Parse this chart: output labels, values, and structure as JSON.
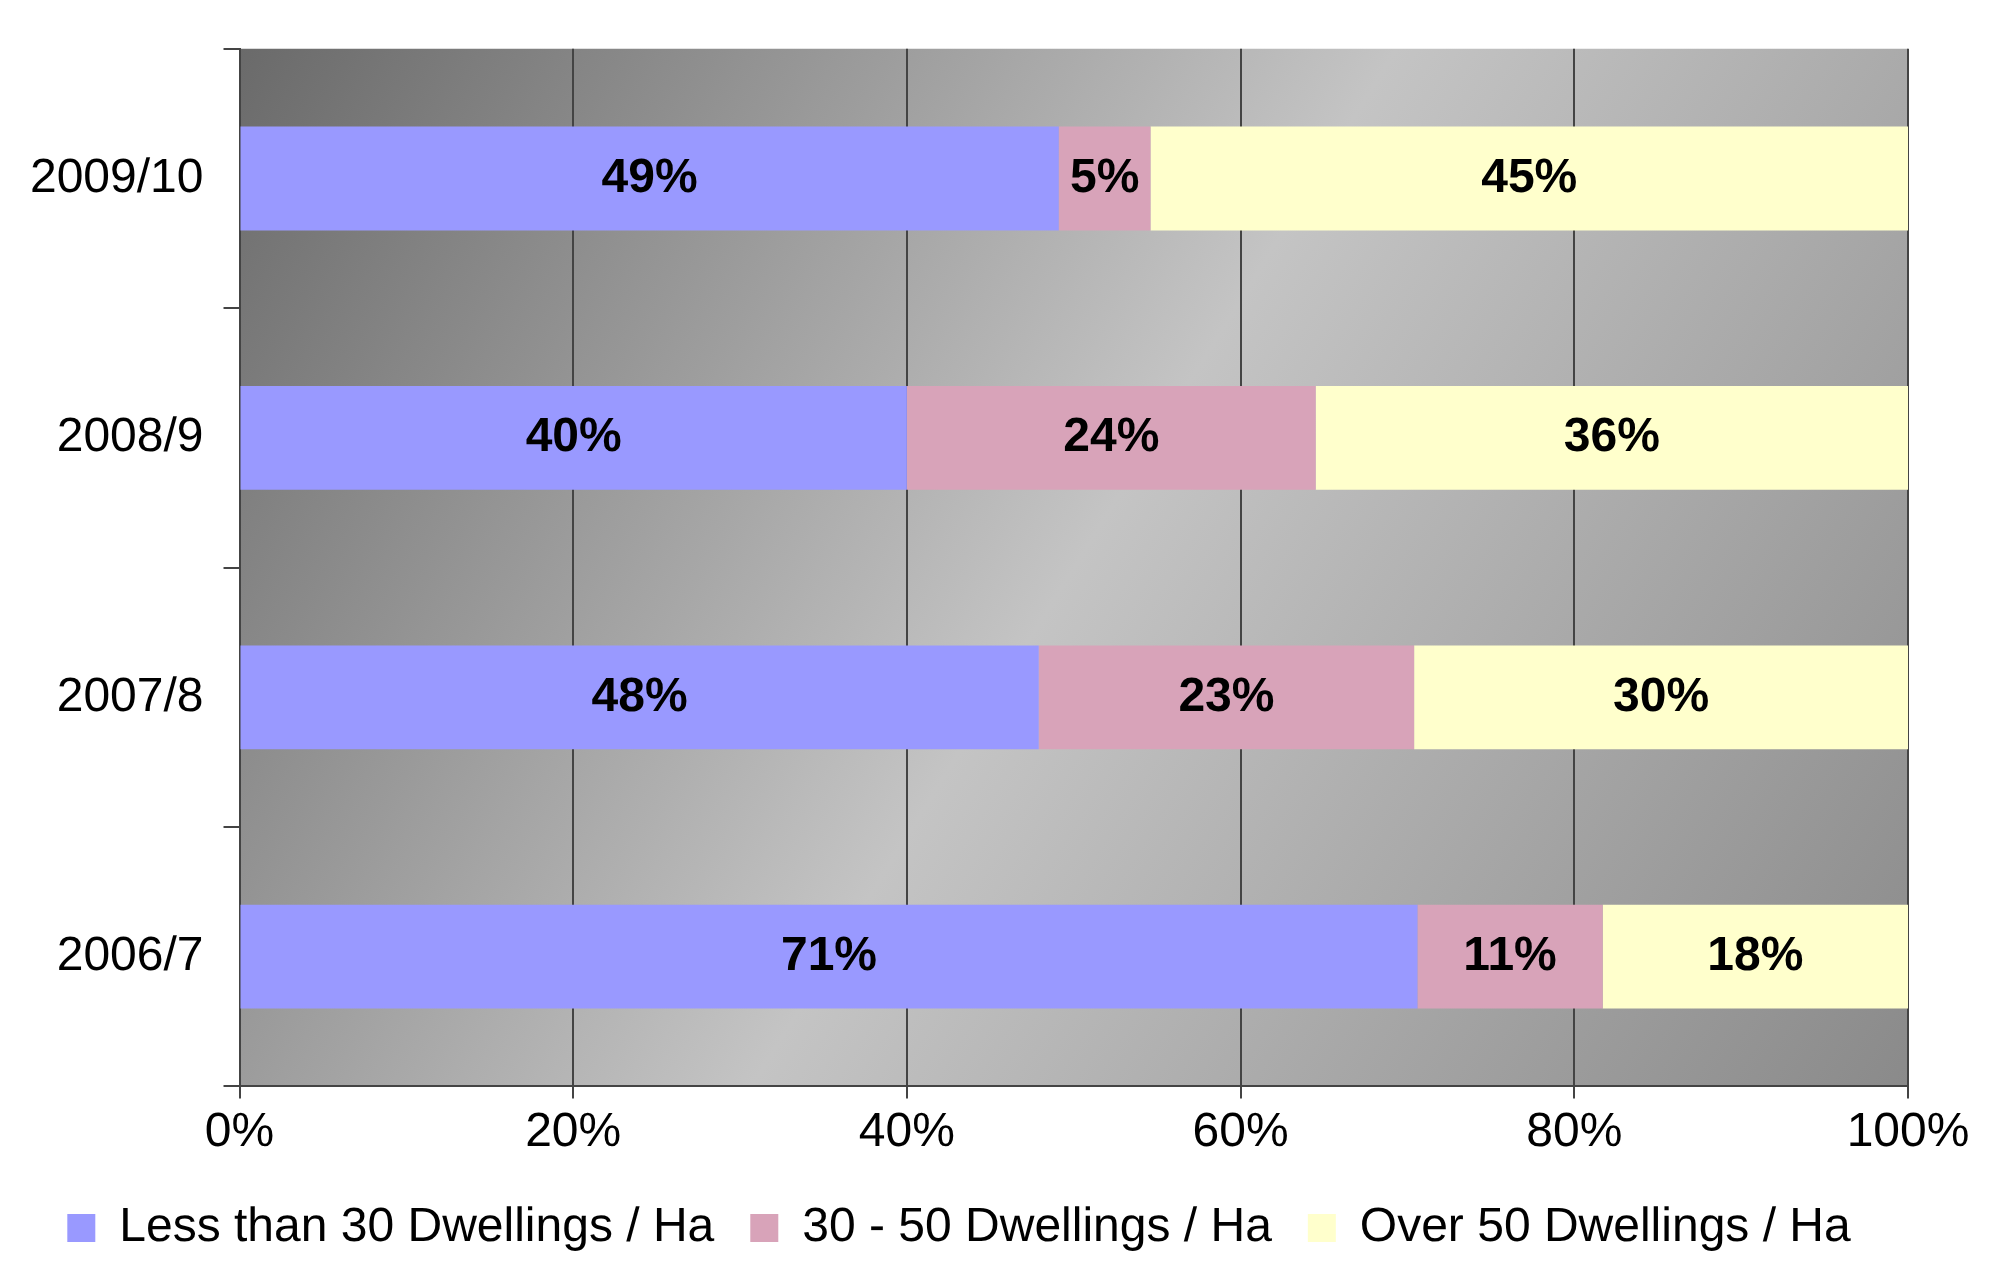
{
  "chart_data": {
    "type": "bar",
    "orientation": "horizontal",
    "stacked": true,
    "categories": [
      "2009/10",
      "2008/9",
      "2007/8",
      "2006/7"
    ],
    "series": [
      {
        "name": "Less than 30 Dwellings / Ha",
        "color": "#9999ff",
        "values": [
          49.1,
          40,
          47.9,
          70.6
        ],
        "value_labels": [
          "49%",
          "40%",
          "48%",
          "71%"
        ]
      },
      {
        "name": "30 - 50 Dwellings / Ha",
        "color": "#d8a3b9",
        "values": [
          5.5,
          24.5,
          22.5,
          11.1
        ],
        "value_labels": [
          "5%",
          "24%",
          "23%",
          "11%"
        ]
      },
      {
        "name": "Over 50 Dwellings / Ha",
        "color": "#ffffcc",
        "values": [
          45.4,
          35.5,
          29.6,
          18.3
        ],
        "value_labels": [
          "45%",
          "36%",
          "30%",
          "18%"
        ]
      }
    ],
    "xlim": [
      0,
      100
    ],
    "xticks": [
      {
        "value": 0,
        "label": "0%"
      },
      {
        "value": 20,
        "label": "20%"
      },
      {
        "value": 40,
        "label": "40%"
      },
      {
        "value": 60,
        "label": "60%"
      },
      {
        "value": 80,
        "label": "80%"
      },
      {
        "value": 100,
        "label": "100%"
      }
    ],
    "grid": "x",
    "legend": "bottom"
  }
}
